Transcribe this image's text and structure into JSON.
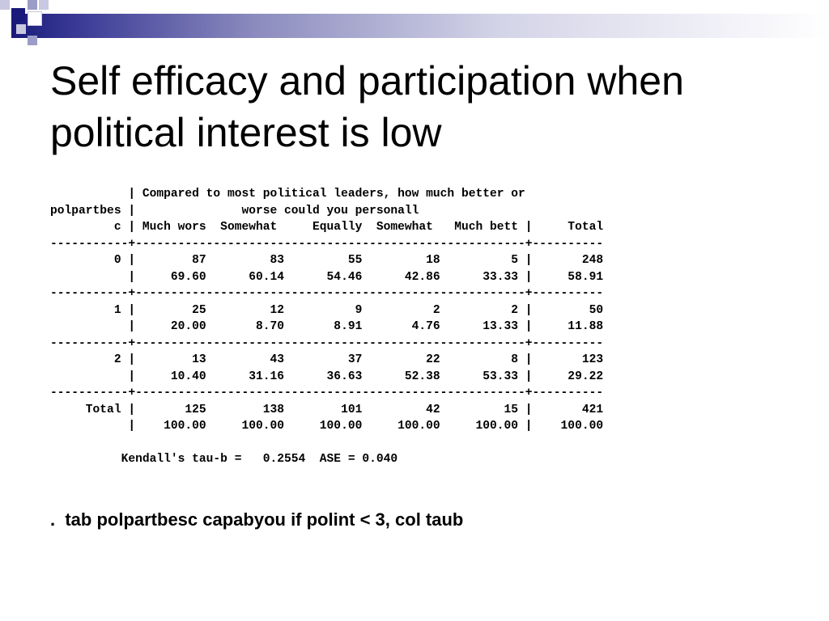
{
  "slide": {
    "title": "Self efficacy and participation when political interest is low",
    "output_lines": [
      "           | Compared to most political leaders, how much better or",
      "polpartbes |               worse could you personall",
      "         c | Much wors  Somewhat     Equally  Somewhat   Much bett |     Total",
      "-----------+-------------------------------------------------------+----------",
      "         0 |        87         83         55         18          5 |       248",
      "           |     69.60      60.14      54.46      42.86      33.33 |     58.91",
      "-----------+-------------------------------------------------------+----------",
      "         1 |        25         12          9          2          2 |        50",
      "           |     20.00       8.70       8.91       4.76      13.33 |     11.88",
      "-----------+-------------------------------------------------------+----------",
      "         2 |        13         43         37         22          8 |       123",
      "           |     10.40      31.16      36.63      52.38      53.33 |     29.22",
      "-----------+-------------------------------------------------------+----------",
      "     Total |       125        138        101         42         15 |       421",
      "           |    100.00     100.00     100.00     100.00     100.00 |    100.00",
      "",
      "          Kendall's tau-b =   0.2554  ASE = 0.040"
    ],
    "command": ".  tab polpartbesc capabyou if polint < 3, col taub"
  },
  "colors": {
    "title": "#000000",
    "accent_dark": "#1a1a7a",
    "accent_light": "#9c9cc8"
  }
}
